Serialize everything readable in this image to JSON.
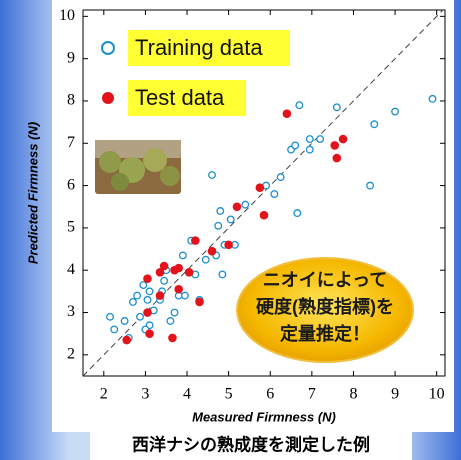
{
  "chart_data": {
    "type": "scatter",
    "xlabel": "Measured Firmness (N)",
    "ylabel": "Predicted Firmness (N)",
    "xlim": [
      1.5,
      10.2
    ],
    "ylim": [
      1.5,
      10.15
    ],
    "xticks": [
      2,
      3,
      4,
      5,
      6,
      7,
      8,
      9,
      10
    ],
    "yticks": [
      2,
      3,
      4,
      5,
      6,
      7,
      8,
      9,
      10
    ],
    "series": [
      {
        "name": "Training data",
        "color": "#1b8fd2",
        "marker": "open",
        "x": [
          2.15,
          2.25,
          2.5,
          2.6,
          2.7,
          2.8,
          2.87,
          2.95,
          3.05,
          3.1,
          3.1,
          3.0,
          3.2,
          3.35,
          3.4,
          3.45,
          3.5,
          3.6,
          3.7,
          3.8,
          3.95,
          3.9,
          4.1,
          4.2,
          4.3,
          4.45,
          4.6,
          4.7,
          4.75,
          4.8,
          4.9,
          5.05,
          5.15,
          4.85,
          5.4,
          5.9,
          6.1,
          6.25,
          6.5,
          6.6,
          6.7,
          6.65,
          6.95,
          6.95,
          7.2,
          7.6,
          8.4,
          8.5,
          9.0,
          9.9
        ],
        "values": [
          2.9,
          2.6,
          2.8,
          2.4,
          3.25,
          3.4,
          2.9,
          3.65,
          3.3,
          3.5,
          2.7,
          2.6,
          3.05,
          3.3,
          3.5,
          3.75,
          4.0,
          2.8,
          3.0,
          3.4,
          3.4,
          4.35,
          4.7,
          3.9,
          3.3,
          4.25,
          6.25,
          4.35,
          5.05,
          5.4,
          4.6,
          5.2,
          4.6,
          3.9,
          5.55,
          6.0,
          5.8,
          6.2,
          6.85,
          6.95,
          7.9,
          5.35,
          6.85,
          7.1,
          7.1,
          7.85,
          6.0,
          7.45,
          7.75,
          8.05
        ]
      },
      {
        "name": "Test data",
        "color": "#e3131c",
        "marker": "filled",
        "x": [
          2.55,
          3.05,
          3.1,
          3.05,
          3.35,
          3.35,
          3.45,
          3.7,
          3.8,
          3.65,
          3.8,
          4.05,
          4.2,
          4.3,
          4.6,
          5.0,
          5.2,
          5.75,
          5.85,
          6.4,
          7.55,
          7.6,
          7.75
        ],
        "values": [
          2.35,
          3.0,
          2.5,
          3.8,
          3.4,
          3.95,
          4.1,
          4.0,
          4.05,
          2.4,
          3.55,
          3.95,
          4.7,
          3.25,
          4.45,
          4.6,
          5.5,
          5.95,
          5.3,
          7.7,
          6.95,
          6.65,
          7.1
        ]
      }
    ],
    "annotation": [
      "ニオイによって",
      "硬度(熟度指標)を",
      "定量推定！"
    ],
    "caption": "西洋ナシの熟成度を測定した例"
  }
}
